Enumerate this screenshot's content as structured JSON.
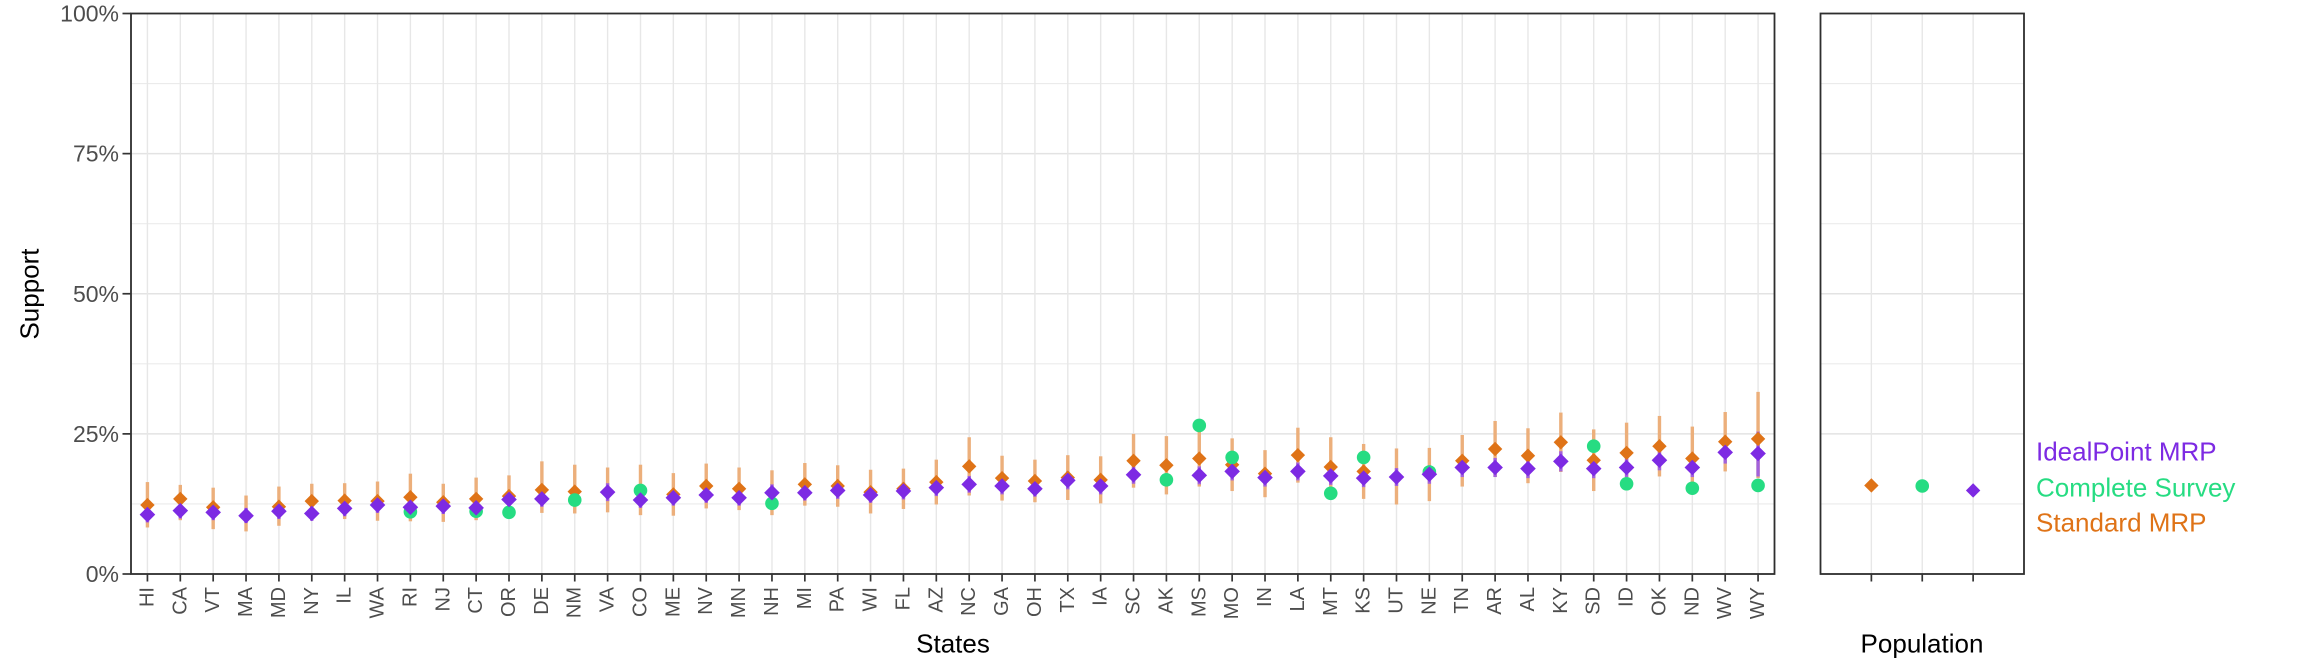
{
  "figure": {
    "y_axis": {
      "title": "Support",
      "range": [
        0,
        100
      ],
      "major_ticks": [
        0,
        25,
        50,
        75,
        100
      ],
      "tick_labels": [
        "0%",
        "25%",
        "50%",
        "75%",
        "100%"
      ],
      "minor_ticks": [
        12.5,
        37.5,
        62.5,
        87.5
      ]
    },
    "x_axis": {
      "title": "States"
    },
    "population_axis": {
      "title": "Population"
    },
    "legend": [
      {
        "label": "IdealPoint MRP",
        "color": "#7D2AE3"
      },
      {
        "label": "Complete Survey",
        "color": "#26DC82"
      },
      {
        "label": "Standard MRP",
        "color": "#DF7317"
      }
    ]
  },
  "chart_data": {
    "type": "scatter",
    "title": "",
    "xlabel": "States",
    "ylabel": "Support",
    "ylim": [
      0,
      100
    ],
    "grid": true,
    "legend_position": "right",
    "series_meta": [
      {
        "name": "IdealPoint MRP",
        "color": "#7D2AE3",
        "shape": "diamond",
        "errorbar_color": "#A262DB"
      },
      {
        "name": "Complete Survey",
        "color": "#26DC82",
        "shape": "circle",
        "errorbar_color": null
      },
      {
        "name": "Standard MRP",
        "color": "#DF7317",
        "shape": "diamond",
        "errorbar_color": "#ECAF7B"
      }
    ],
    "states_columns": [
      "state",
      "standard_mrp",
      "idealpoint_mrp",
      "complete_survey",
      "standard_ci_low",
      "standard_ci_high",
      "idealpoint_ci_low",
      "idealpoint_ci_high"
    ],
    "states": [
      [
        "HI",
        12.3,
        10.6,
        null,
        8.3,
        16.4,
        9.2,
        12.1
      ],
      [
        "CA",
        13.4,
        11.3,
        null,
        9.6,
        15.9,
        9.9,
        12.8
      ],
      [
        "VT",
        11.9,
        11.0,
        null,
        8.0,
        15.4,
        9.6,
        12.5
      ],
      [
        "MA",
        null,
        10.4,
        null,
        7.6,
        14.0,
        9.1,
        11.8
      ],
      [
        "MD",
        12.0,
        11.2,
        null,
        8.6,
        15.6,
        9.8,
        12.7
      ],
      [
        "NY",
        13.0,
        10.8,
        null,
        9.7,
        16.1,
        9.5,
        12.2
      ],
      [
        "IL",
        13.1,
        11.7,
        null,
        9.8,
        16.2,
        10.3,
        13.1
      ],
      [
        "WA",
        13.0,
        12.3,
        null,
        9.5,
        16.5,
        10.9,
        13.7
      ],
      [
        "RI",
        13.7,
        11.9,
        11.1,
        9.4,
        17.9,
        10.5,
        13.4
      ],
      [
        "NJ",
        12.8,
        12.1,
        null,
        9.3,
        16.1,
        10.7,
        13.5
      ],
      [
        "CT",
        13.4,
        11.8,
        11.2,
        9.6,
        17.2,
        10.4,
        13.3
      ],
      [
        "OR",
        13.9,
        13.3,
        11.0,
        10.0,
        17.6,
        11.8,
        14.8
      ],
      [
        "DE",
        15.0,
        13.4,
        null,
        10.9,
        20.1,
        12.0,
        15.0
      ],
      [
        "NM",
        14.7,
        null,
        13.2,
        10.8,
        19.5,
        null,
        null
      ],
      [
        "VA",
        null,
        14.6,
        null,
        11.0,
        19.0,
        13.0,
        16.2
      ],
      [
        "CO",
        null,
        13.2,
        14.9,
        10.5,
        19.5,
        11.8,
        14.8
      ],
      [
        "ME",
        14.2,
        13.6,
        null,
        10.4,
        18.0,
        12.2,
        15.1
      ],
      [
        "NV",
        15.7,
        14.1,
        null,
        11.7,
        19.7,
        12.7,
        15.6
      ],
      [
        "MN",
        15.2,
        13.6,
        null,
        11.4,
        19.0,
        12.2,
        15.0
      ],
      [
        "NH",
        null,
        14.5,
        12.6,
        10.5,
        18.5,
        13.0,
        16.0
      ],
      [
        "MI",
        16.0,
        14.5,
        null,
        12.2,
        19.8,
        13.1,
        16.0
      ],
      [
        "PA",
        15.7,
        14.9,
        null,
        12.0,
        19.4,
        13.4,
        16.4
      ],
      [
        "WI",
        14.6,
        14.1,
        null,
        10.8,
        18.6,
        12.7,
        15.6
      ],
      [
        "FL",
        15.2,
        14.8,
        null,
        11.6,
        18.8,
        13.3,
        16.3
      ],
      [
        "AZ",
        16.4,
        15.4,
        null,
        12.4,
        20.4,
        13.9,
        16.9
      ],
      [
        "NC",
        19.2,
        16.0,
        null,
        14.0,
        24.4,
        14.5,
        17.5
      ],
      [
        "GA",
        17.1,
        15.7,
        null,
        13.1,
        21.1,
        14.2,
        17.2
      ],
      [
        "OH",
        16.6,
        15.2,
        null,
        12.8,
        20.4,
        13.8,
        16.7
      ],
      [
        "TX",
        17.2,
        16.7,
        null,
        13.2,
        21.2,
        15.1,
        18.3
      ],
      [
        "IA",
        16.8,
        15.7,
        null,
        12.6,
        21.0,
        14.2,
        17.2
      ],
      [
        "SC",
        20.2,
        17.7,
        null,
        15.4,
        25.0,
        16.1,
        19.3
      ],
      [
        "AK",
        19.4,
        null,
        16.8,
        14.2,
        24.6,
        null,
        null
      ],
      [
        "MS",
        20.6,
        17.6,
        26.5,
        15.6,
        25.6,
        16.0,
        19.2
      ],
      [
        "MO",
        19.5,
        18.3,
        20.8,
        14.8,
        24.2,
        16.7,
        19.9
      ],
      [
        "IN",
        17.9,
        17.2,
        null,
        13.7,
        22.1,
        15.6,
        18.8
      ],
      [
        "LA",
        21.2,
        18.3,
        null,
        16.3,
        26.1,
        16.7,
        19.9
      ],
      [
        "MT",
        19.1,
        17.5,
        14.4,
        13.8,
        24.4,
        15.9,
        19.1
      ],
      [
        "KS",
        18.3,
        17.1,
        20.8,
        13.4,
        23.2,
        15.5,
        18.7
      ],
      [
        "UT",
        null,
        17.3,
        null,
        12.4,
        22.4,
        15.7,
        18.9
      ],
      [
        "NE",
        null,
        17.8,
        18.2,
        13.0,
        22.5,
        16.1,
        19.4
      ],
      [
        "TN",
        20.2,
        19.0,
        null,
        15.6,
        24.8,
        17.3,
        20.7
      ],
      [
        "AR",
        22.3,
        19.0,
        null,
        17.3,
        27.3,
        17.3,
        20.7
      ],
      [
        "AL",
        21.1,
        18.8,
        null,
        16.2,
        26.0,
        17.1,
        20.5
      ],
      [
        "KY",
        23.5,
        20.1,
        null,
        18.2,
        28.8,
        18.3,
        21.9
      ],
      [
        "SD",
        20.3,
        18.8,
        22.8,
        14.8,
        25.8,
        17.1,
        20.5
      ],
      [
        "ID",
        21.6,
        19.0,
        16.1,
        16.2,
        27.0,
        17.3,
        20.7
      ],
      [
        "OK",
        22.8,
        20.3,
        null,
        17.4,
        28.2,
        18.5,
        22.1
      ],
      [
        "ND",
        20.6,
        19.0,
        15.3,
        14.9,
        26.3,
        17.3,
        20.7
      ],
      [
        "WV",
        23.6,
        21.7,
        null,
        18.3,
        28.9,
        19.7,
        23.7
      ],
      [
        "WY",
        24.1,
        21.5,
        15.8,
        17.1,
        32.5,
        17.4,
        25.4
      ]
    ],
    "population": {
      "label": "Population",
      "standard_mrp": 15.8,
      "standard_ci": [
        15.1,
        16.5
      ],
      "complete_survey": 15.7,
      "idealpoint_mrp": 14.9,
      "idealpoint_ci": [
        13.9,
        15.8
      ]
    }
  }
}
